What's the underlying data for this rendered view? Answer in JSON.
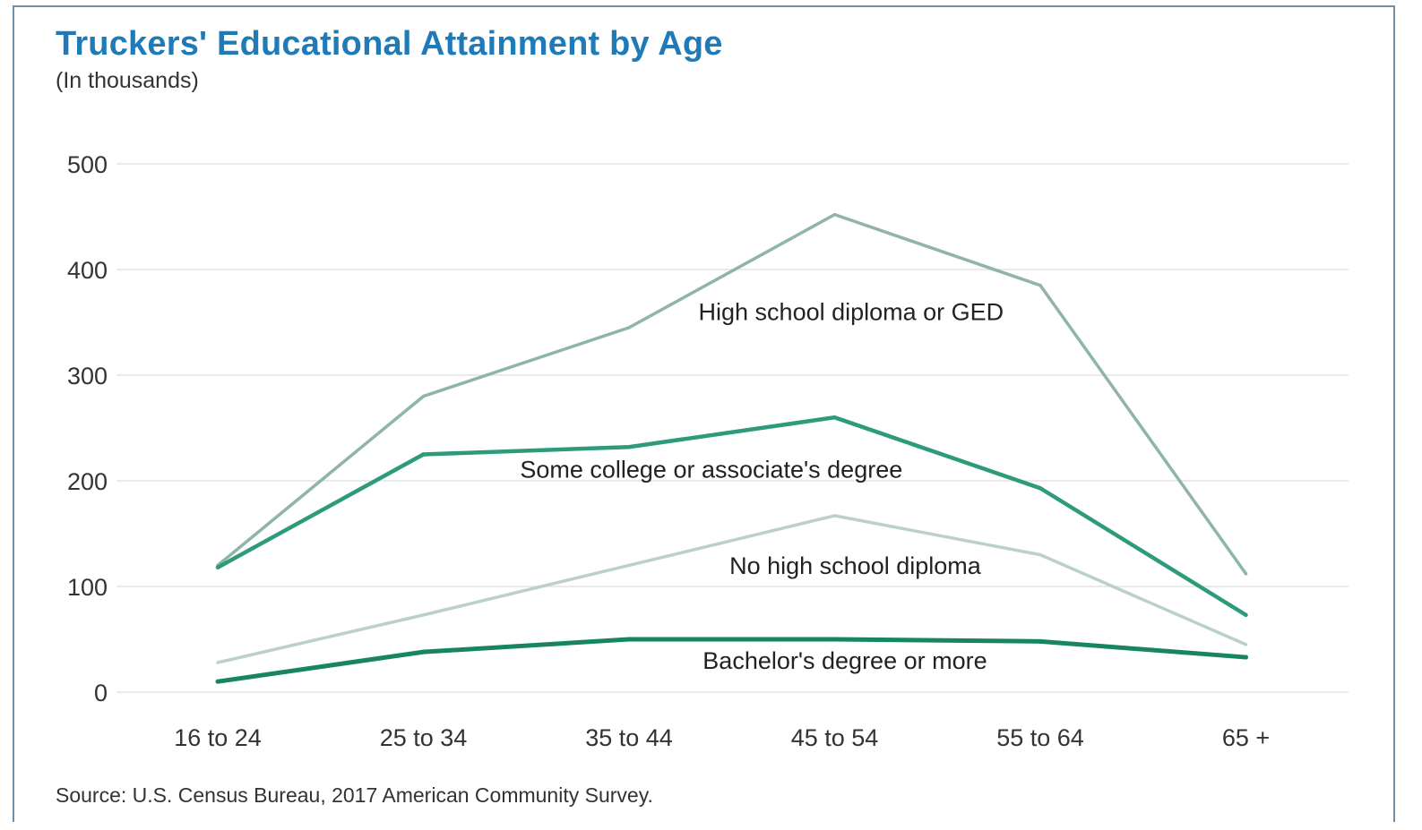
{
  "header": {
    "title": "Truckers' Educational Attainment by Age",
    "subtitle": "(In thousands)"
  },
  "footer": {
    "source": "Source: U.S. Census Bureau, 2017 American Community Survey."
  },
  "chart_data": {
    "type": "line",
    "title": "Truckers' Educational Attainment by Age",
    "subtitle": "(In thousands)",
    "xlabel": "",
    "ylabel": "",
    "categories": [
      "16 to 24",
      "25 to 34",
      "35 to 44",
      "45 to 54",
      "55 to 64",
      "65 +"
    ],
    "ylim": [
      0,
      500
    ],
    "yticks": [
      0,
      100,
      200,
      300,
      400,
      500
    ],
    "grid": true,
    "legend": "inline labels",
    "series": [
      {
        "name": "High school diploma or GED",
        "values": [
          120,
          280,
          345,
          452,
          385,
          112
        ],
        "color": "#8fb5a8",
        "width": 3.5
      },
      {
        "name": "Some college or associate's degree",
        "values": [
          118,
          225,
          232,
          260,
          193,
          73
        ],
        "color": "#2e9a7c",
        "width": 4.5
      },
      {
        "name": "No high school diploma",
        "values": [
          28,
          73,
          120,
          167,
          130,
          45
        ],
        "color": "#b9d1c7",
        "width": 3.5
      },
      {
        "name": "Bachelor's degree or more",
        "values": [
          10,
          38,
          50,
          50,
          48,
          33
        ],
        "color": "#17855f",
        "width": 5
      }
    ]
  }
}
